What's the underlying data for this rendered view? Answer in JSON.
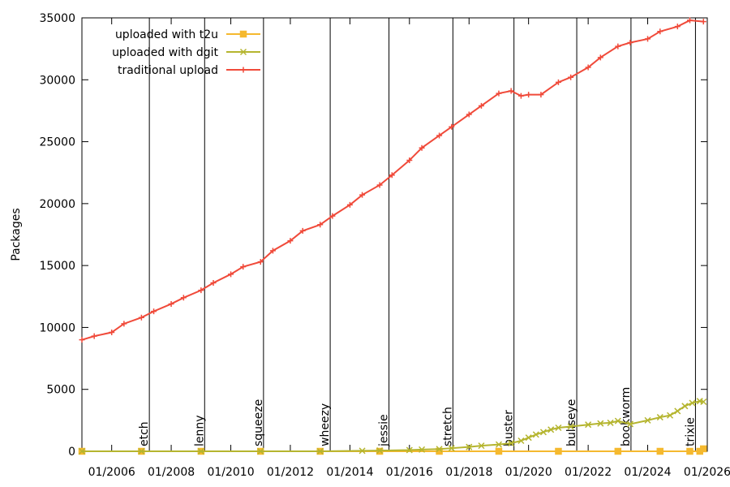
{
  "chart_data": {
    "type": "line",
    "title": "",
    "xlabel": "",
    "ylabel": "Packages",
    "xlim": [
      "2005-01-01",
      "2026-01-01"
    ],
    "ylim": [
      0,
      35000
    ],
    "y_ticks": [
      0,
      5000,
      10000,
      15000,
      20000,
      25000,
      30000,
      35000
    ],
    "x_ticks": [
      {
        "date": "2006-01-01",
        "label": "01/2006"
      },
      {
        "date": "2008-01-01",
        "label": "01/2008"
      },
      {
        "date": "2010-01-01",
        "label": "01/2010"
      },
      {
        "date": "2012-01-01",
        "label": "01/2012"
      },
      {
        "date": "2014-01-01",
        "label": "01/2014"
      },
      {
        "date": "2016-01-01",
        "label": "01/2016"
      },
      {
        "date": "2018-01-01",
        "label": "01/2018"
      },
      {
        "date": "2020-01-01",
        "label": "01/2020"
      },
      {
        "date": "2022-01-01",
        "label": "01/2022"
      },
      {
        "date": "2024-01-01",
        "label": "01/2024"
      },
      {
        "date": "2026-01-01",
        "label": "01/2026"
      }
    ],
    "grid": false,
    "legend_position": "top-left",
    "releases": [
      {
        "name": "etch",
        "date": "2007-04-08"
      },
      {
        "name": "lenny",
        "date": "2009-02-14"
      },
      {
        "name": "squeeze",
        "date": "2011-02-06"
      },
      {
        "name": "wheezy",
        "date": "2013-05-04"
      },
      {
        "name": "jessie",
        "date": "2015-04-25"
      },
      {
        "name": "stretch",
        "date": "2017-06-17"
      },
      {
        "name": "buster",
        "date": "2019-07-06"
      },
      {
        "name": "bullseye",
        "date": "2021-08-14"
      },
      {
        "name": "bookworm",
        "date": "2023-06-10"
      },
      {
        "name": "trixie",
        "date": "2025-08-09"
      }
    ],
    "series": [
      {
        "name": "uploaded with t2u",
        "color": "#f5b92f",
        "marker": "square",
        "x": [
          "2005-01-01",
          "2007-01-01",
          "2009-01-01",
          "2011-01-01",
          "2013-01-01",
          "2015-01-01",
          "2017-01-01",
          "2019-01-01",
          "2021-01-01",
          "2023-01-01",
          "2024-06-01",
          "2025-06-01",
          "2025-10-01",
          "2025-11-15"
        ],
        "y": [
          0,
          0,
          0,
          0,
          0,
          0,
          0,
          0,
          0,
          0,
          0,
          0,
          0,
          200
        ]
      },
      {
        "name": "uploaded with dgit",
        "color": "#b5b52f",
        "marker": "x",
        "x": [
          "2005-01-01",
          "2007-01-01",
          "2009-01-01",
          "2011-01-01",
          "2013-01-01",
          "2014-06-01",
          "2015-01-01",
          "2016-01-01",
          "2016-06-01",
          "2017-01-01",
          "2017-06-01",
          "2018-01-01",
          "2018-06-01",
          "2019-01-01",
          "2019-06-01",
          "2019-10-01",
          "2020-01-01",
          "2020-04-01",
          "2020-07-01",
          "2020-10-01",
          "2021-01-01",
          "2021-06-01",
          "2022-01-01",
          "2022-06-01",
          "2022-10-01",
          "2023-01-01",
          "2023-06-01",
          "2024-01-01",
          "2024-06-01",
          "2024-10-01",
          "2025-01-01",
          "2025-04-01",
          "2025-07-01",
          "2025-10-01",
          "2025-11-15"
        ],
        "y": [
          0,
          0,
          0,
          0,
          0,
          40,
          60,
          100,
          140,
          180,
          250,
          350,
          450,
          550,
          650,
          850,
          1100,
          1350,
          1550,
          1750,
          1900,
          2000,
          2150,
          2250,
          2300,
          2450,
          2200,
          2500,
          2750,
          2900,
          3250,
          3650,
          3900,
          4050,
          4000
        ]
      },
      {
        "name": "traditional upload",
        "color": "#f04a3a",
        "marker": "plus",
        "x": [
          "2005-01-01",
          "2005-06-01",
          "2006-01-01",
          "2006-06-01",
          "2007-01-01",
          "2007-06-01",
          "2008-01-01",
          "2008-06-01",
          "2009-01-01",
          "2009-06-01",
          "2010-01-01",
          "2010-06-01",
          "2011-01-01",
          "2011-06-01",
          "2012-01-01",
          "2012-06-01",
          "2013-01-01",
          "2013-06-01",
          "2014-01-01",
          "2014-06-01",
          "2015-01-01",
          "2015-06-01",
          "2016-01-01",
          "2016-06-01",
          "2017-01-01",
          "2017-06-01",
          "2018-01-01",
          "2018-06-01",
          "2019-01-01",
          "2019-06-01",
          "2019-10-01",
          "2020-01-01",
          "2020-06-01",
          "2021-01-01",
          "2021-06-01",
          "2022-01-01",
          "2022-06-01",
          "2023-01-01",
          "2023-06-01",
          "2024-01-01",
          "2024-06-01",
          "2025-01-01",
          "2025-06-01",
          "2025-11-15"
        ],
        "y": [
          9000,
          9300,
          9600,
          10300,
          10800,
          11300,
          11900,
          12400,
          13000,
          13600,
          14300,
          14900,
          15300,
          16200,
          17000,
          17800,
          18300,
          19000,
          19900,
          20700,
          21500,
          22300,
          23500,
          24500,
          25500,
          26200,
          27200,
          27900,
          28900,
          29100,
          28700,
          28800,
          28800,
          29800,
          30200,
          31000,
          31800,
          32700,
          33000,
          33300,
          33900,
          34300,
          34800,
          34700
        ]
      }
    ]
  }
}
